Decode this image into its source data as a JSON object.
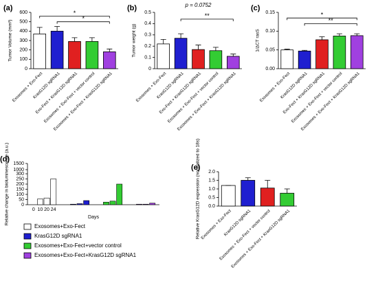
{
  "chart_data": [
    {
      "type": "bar",
      "panel": "(a)",
      "ylabel": "Tumor Volume (mm³)",
      "categories": [
        "Exosomes + Exo-Fect",
        "KrasG12D sgRNA1",
        "Exo-Fect + KrasG12D sgRNA1",
        "Exosomes + Exo-Fect + vector control",
        "Exosomes + Exo-Fect + KrasG12D sgRNA1"
      ],
      "values": [
        370,
        400,
        290,
        290,
        180
      ],
      "errors": [
        70,
        50,
        40,
        40,
        30
      ],
      "colors": [
        "#ffffff",
        "#1f1fd0",
        "#e02020",
        "#33cc33",
        "#a040e0"
      ],
      "ylim": [
        0,
        600
      ],
      "yticks": [
        0,
        100,
        200,
        300,
        400,
        500,
        600
      ],
      "annotations": [
        "*",
        "*"
      ]
    },
    {
      "type": "bar",
      "panel": "(b)",
      "ylabel": "Tumor weight (g)",
      "note": "p = 0.0752",
      "categories": [
        "Exosomes + Exo-Fect",
        "KrasG12D sgRNA1",
        "Exo-Fect + KrasG12D sgRNA1",
        "Exosomes + Exo-Fect + vector control",
        "Exosomes + Exo-Fect + KrasG12D sgRNA1"
      ],
      "values": [
        0.22,
        0.27,
        0.17,
        0.16,
        0.11
      ],
      "errors": [
        0.04,
        0.04,
        0.04,
        0.03,
        0.02
      ],
      "colors": [
        "#ffffff",
        "#1f1fd0",
        "#e02020",
        "#33cc33",
        "#a040e0"
      ],
      "ylim": [
        0,
        0.5
      ],
      "yticks": [
        0,
        0.1,
        0.2,
        0.3,
        0.4,
        0.5
      ],
      "annotations": [
        "**"
      ]
    },
    {
      "type": "bar",
      "panel": "(c)",
      "ylabel": "1/ΔCT rasS",
      "categories": [
        "Exosomes + Exo-Fect",
        "KrasG12D sgRNA1",
        "Exo-Fect + KrasG12D sgRNA1",
        "Exosomes + Exo-Fect + vector control",
        "Exosomes + Exo-Fect + KrasG12D sgRNA1"
      ],
      "values": [
        0.05,
        0.047,
        0.077,
        0.087,
        0.088
      ],
      "errors": [
        0.002,
        0.002,
        0.008,
        0.006,
        0.005
      ],
      "colors": [
        "#ffffff",
        "#1f1fd0",
        "#e02020",
        "#33cc33",
        "#a040e0"
      ],
      "ylim": [
        0,
        0.15
      ],
      "yticks": [
        {
          "value": 0,
          "label": "0.00"
        },
        {
          "value": 0.05,
          "label": "0.05"
        },
        {
          "value": 0.1,
          "label": "0.10"
        },
        {
          "value": 0.15,
          "label": "0.15"
        }
      ],
      "annotations": [
        "*",
        "**"
      ]
    },
    {
      "type": "grouped_bar",
      "panel": "(d)",
      "ylabel": "Relative change in bioluminescence (a.u.)",
      "xlabel": "Days",
      "categories": [
        "0",
        "10",
        "20",
        "24"
      ],
      "series": [
        {
          "name": "Exosomes+Exo-Fect",
          "color": "#ffffff",
          "values": [
            0,
            55,
            65,
            250
          ]
        },
        {
          "name": "KrasG12D sgRNA1",
          "color": "#1f1fd0",
          "values": [
            0,
            5,
            10,
            40
          ]
        },
        {
          "name": "Exosomes+Exo-Fect+vector control",
          "color": "#33cc33",
          "values": [
            0,
            25,
            35,
            200
          ]
        },
        {
          "name": "Exosomes+Exo-Fect+KrasG12D sgRNA1",
          "color": "#a040e0",
          "values": [
            0,
            5,
            5,
            15
          ]
        }
      ],
      "ylim": [
        0,
        1500
      ],
      "yticks": [
        0,
        50,
        100,
        150,
        200,
        250,
        300,
        1000,
        1500
      ]
    },
    {
      "type": "bar",
      "panel": "(e)",
      "ylabel": "Relative KrasG12D expression (normalized to 18s)",
      "categories": [
        "Exosomes + Exo-Fect",
        "KrasG12D sgRNA1",
        "Exosomes + Exo-Fect + vector control",
        "Exosomes + Exo-Fect + KrasG12D sgRNA1"
      ],
      "values": [
        1.2,
        1.5,
        1.05,
        0.75
      ],
      "errors": [
        0,
        0.15,
        0.45,
        0.25
      ],
      "colors": [
        "#ffffff",
        "#1f1fd0",
        "#e02020",
        "#33cc33"
      ],
      "ylim": [
        0,
        2
      ],
      "yticks": [
        {
          "value": 0,
          "label": "0.0"
        },
        {
          "value": 0.5,
          "label": "0.5"
        },
        {
          "value": 1,
          "label": "1.0"
        },
        {
          "value": 1.5,
          "label": "1.5"
        },
        {
          "value": 2,
          "label": "2.0"
        }
      ]
    }
  ]
}
